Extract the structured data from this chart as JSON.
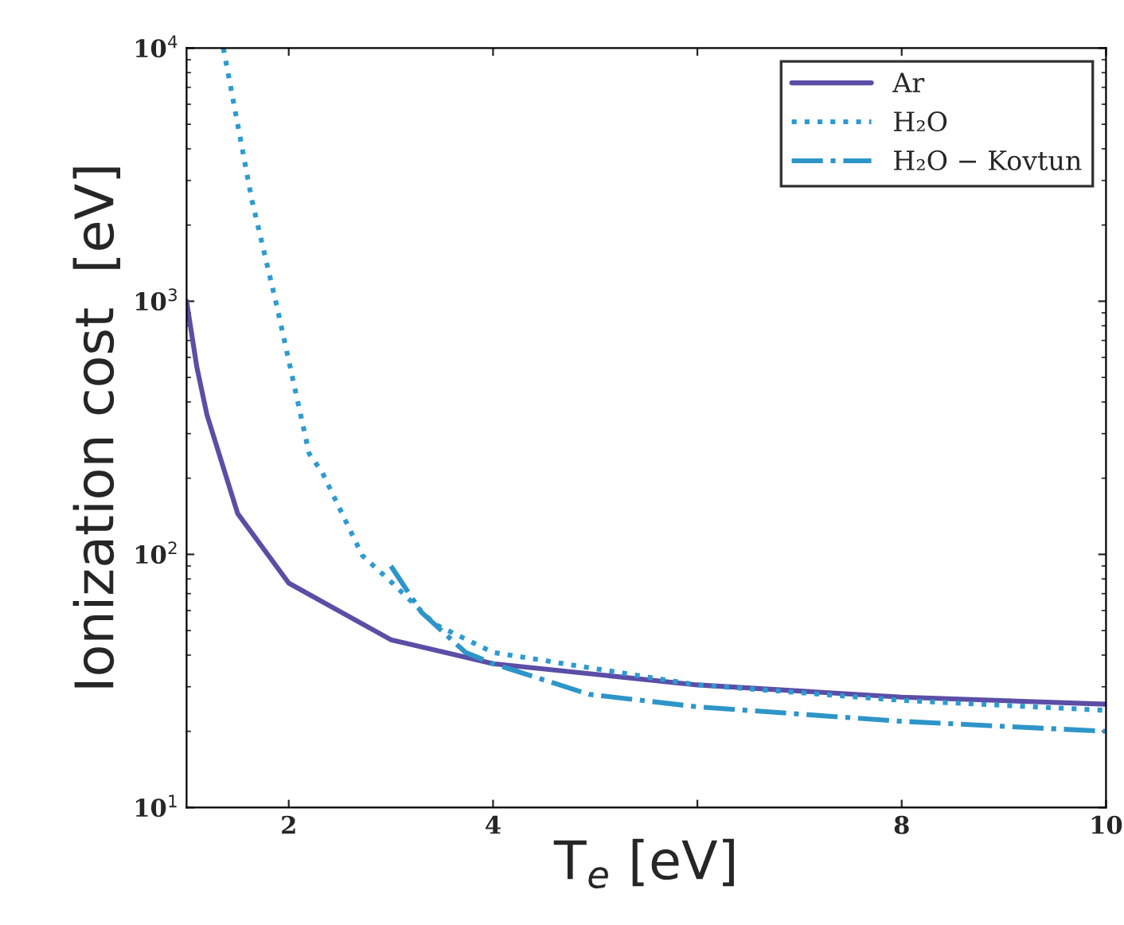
{
  "chart_data": {
    "type": "line",
    "xlabel": "T$_{e}$ [eV]",
    "ylabel": "Ionization cost  [eV]",
    "log": "y",
    "xlim": [
      1,
      10
    ],
    "ylim": [
      10,
      10000
    ],
    "xticks": [
      2,
      4,
      {
        "value": 6,
        "label": null
      },
      8,
      10
    ],
    "yticks": [
      {
        "value": 10,
        "label": "10$^{1}$"
      },
      {
        "value": 100,
        "label": "10$^{2}$"
      },
      {
        "value": 1000,
        "label": "10$^{3}$"
      },
      {
        "value": 10000,
        "label": "10$^{4}$"
      }
    ],
    "grid": false,
    "legend": "top right",
    "series": [
      {
        "name": "Ar",
        "color": "#5b4ea6",
        "line_style": "solid",
        "x": [
          1,
          1.1,
          1.2,
          1.5,
          2,
          3,
          4,
          6,
          8,
          10
        ],
        "values": [
          1000,
          550,
          355,
          145,
          77,
          46,
          37,
          30.5,
          27.3,
          25.6
        ]
      },
      {
        "name": "H₂O",
        "color": "#2e9bd0",
        "line_style": "dotted",
        "x": [
          1.36,
          1.64,
          1.88,
          2.2,
          2.33,
          2.72,
          3,
          3.43,
          4,
          6,
          8,
          10
        ],
        "values": [
          10000,
          2500,
          970,
          250,
          210,
          99,
          78,
          53,
          41,
          30.5,
          26.5,
          24.2
        ]
      },
      {
        "name": "H₂O − Kovtun",
        "color": "#2e95c8",
        "line_style": "dashdot",
        "x": [
          3,
          3.3,
          3.73,
          4,
          4.94,
          6,
          8,
          10
        ],
        "values": [
          90,
          59,
          41,
          37,
          28,
          25,
          21.9,
          20
        ]
      }
    ]
  }
}
